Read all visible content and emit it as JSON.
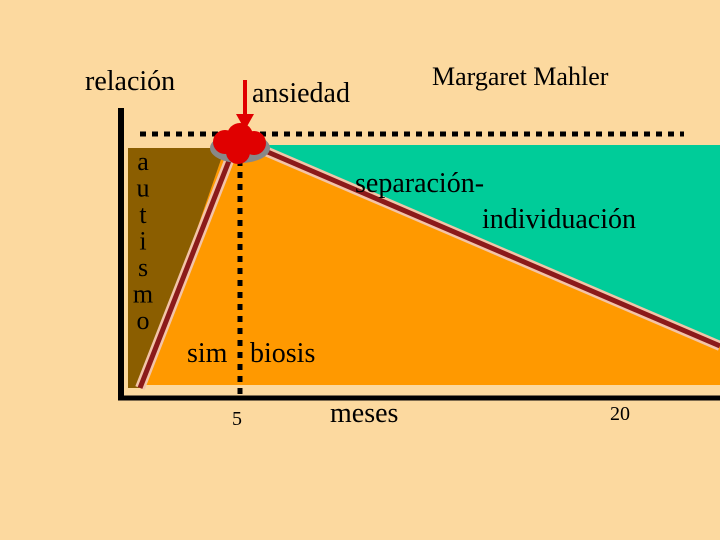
{
  "title": "Margaret Mahler",
  "y_label": "relación",
  "x_label": "meses",
  "marker_label": "ansiedad",
  "phases": {
    "autism_letters": [
      "a",
      "u",
      "t",
      "i",
      "s",
      "m",
      "o"
    ],
    "symbiosis": [
      "sim",
      "biosis"
    ],
    "separation": [
      "separación-",
      "individuación"
    ]
  },
  "x_marks": [
    "5",
    "20"
  ]
}
